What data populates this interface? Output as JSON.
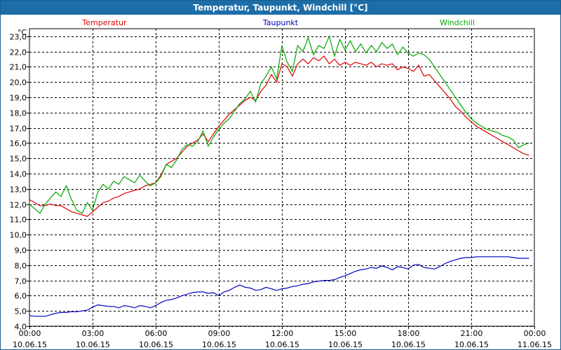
{
  "window": {
    "title": "Temperatur, Taupunkt, Windchill [°C]"
  },
  "colors": {
    "temperatur": "#e00000",
    "taupunkt": "#0000c0",
    "windchill": "#00a800",
    "title_bg": "#1d6ea8"
  },
  "chart_data": {
    "type": "line",
    "title": "Temperatur, Taupunkt, Windchill [°C]",
    "ylabel": "°C",
    "ylim": [
      4.0,
      23.5
    ],
    "yticks": [
      4.0,
      5.0,
      6.0,
      7.0,
      8.0,
      9.0,
      10.0,
      11.0,
      12.0,
      13.0,
      14.0,
      15.0,
      16.0,
      17.0,
      18.0,
      19.0,
      20.0,
      21.0,
      22.0,
      23.0
    ],
    "ytick_labels": [
      "4,0",
      "5,0",
      "6,0",
      "7,0",
      "8,0",
      "9,0",
      "10,0",
      "11,0",
      "12,0",
      "13,0",
      "14,0",
      "15,0",
      "16,0",
      "17,0",
      "18,0",
      "19,0",
      "20,0",
      "21,0",
      "22,0",
      "23,0"
    ],
    "xlim": [
      0,
      24
    ],
    "xticks": [
      0,
      3,
      6,
      9,
      12,
      15,
      18,
      21,
      24
    ],
    "xtick_labels": [
      {
        "time": "00:00",
        "date": "10.06.15"
      },
      {
        "time": "03:00",
        "date": "10.06.15"
      },
      {
        "time": "06:00",
        "date": "10.06.15"
      },
      {
        "time": "09:00",
        "date": "10.06.15"
      },
      {
        "time": "12:00",
        "date": "10.06.15"
      },
      {
        "time": "15:00",
        "date": "10.06.15"
      },
      {
        "time": "18:00",
        "date": "10.06.15"
      },
      {
        "time": "21:00",
        "date": "10.06.15"
      },
      {
        "time": "00:00",
        "date": "11.06.15"
      }
    ],
    "grid": true,
    "legend": [
      "Temperatur",
      "Taupunkt",
      "Windchill"
    ],
    "series": [
      {
        "name": "Temperatur",
        "color": "#e00000",
        "x": [
          0,
          0.25,
          0.5,
          0.75,
          1,
          1.25,
          1.5,
          1.75,
          2,
          2.25,
          2.5,
          2.75,
          3,
          3.25,
          3.5,
          3.75,
          4,
          4.25,
          4.5,
          4.75,
          5,
          5.25,
          5.5,
          5.75,
          6,
          6.25,
          6.5,
          6.75,
          7,
          7.25,
          7.5,
          7.75,
          8,
          8.25,
          8.5,
          8.75,
          9,
          9.25,
          9.5,
          9.75,
          10,
          10.25,
          10.5,
          10.75,
          11,
          11.25,
          11.5,
          11.75,
          12,
          12.25,
          12.5,
          12.75,
          13,
          13.25,
          13.5,
          13.75,
          14,
          14.25,
          14.5,
          14.75,
          15,
          15.25,
          15.5,
          15.75,
          16,
          16.25,
          16.5,
          16.75,
          17,
          17.25,
          17.5,
          17.75,
          18,
          18.25,
          18.5,
          18.75,
          19,
          19.25,
          19.5,
          19.75,
          20,
          20.25,
          20.5,
          20.75,
          21,
          21.25,
          21.5,
          21.75,
          22,
          22.25,
          22.5,
          22.75,
          23,
          23.25,
          23.5,
          23.75
        ],
        "values": [
          12.3,
          12.1,
          11.9,
          11.9,
          12.0,
          11.9,
          11.9,
          11.7,
          11.5,
          11.4,
          11.3,
          11.2,
          11.5,
          11.8,
          12.1,
          12.2,
          12.4,
          12.5,
          12.7,
          12.8,
          12.9,
          13.0,
          13.2,
          13.3,
          13.4,
          13.9,
          14.6,
          14.8,
          15.0,
          15.4,
          15.8,
          16.0,
          16.2,
          16.6,
          16.1,
          16.6,
          17.1,
          17.5,
          17.9,
          18.2,
          18.5,
          18.8,
          19.0,
          18.8,
          19.4,
          19.8,
          20.5,
          20.0,
          21.2,
          21.0,
          20.4,
          21.2,
          21.5,
          21.2,
          21.6,
          21.4,
          21.7,
          21.2,
          21.5,
          21.1,
          21.3,
          21.1,
          21.3,
          21.2,
          21.1,
          21.3,
          21.0,
          21.2,
          21.1,
          21.2,
          20.8,
          21.0,
          20.9,
          20.7,
          21.1,
          20.4,
          20.5,
          20.1,
          19.7,
          19.3,
          18.9,
          18.4,
          18.1,
          17.7,
          17.4,
          17.1,
          16.9,
          16.7,
          16.5,
          16.3,
          16.1,
          15.9,
          15.7,
          15.5,
          15.3,
          15.2
        ],
        "label_position": "top-left"
      },
      {
        "name": "Taupunkt",
        "color": "#0000c0",
        "x": [
          0,
          0.25,
          0.5,
          0.75,
          1,
          1.25,
          1.5,
          1.75,
          2,
          2.25,
          2.5,
          2.75,
          3,
          3.25,
          3.5,
          3.75,
          4,
          4.25,
          4.5,
          4.75,
          5,
          5.25,
          5.5,
          5.75,
          6,
          6.25,
          6.5,
          6.75,
          7,
          7.25,
          7.5,
          7.75,
          8,
          8.25,
          8.5,
          8.75,
          9,
          9.25,
          9.5,
          9.75,
          10,
          10.25,
          10.5,
          10.75,
          11,
          11.25,
          11.5,
          11.75,
          12,
          12.25,
          12.5,
          12.75,
          13,
          13.25,
          13.5,
          13.75,
          14,
          14.25,
          14.5,
          14.75,
          15,
          15.25,
          15.5,
          15.75,
          16,
          16.25,
          16.5,
          16.75,
          17,
          17.25,
          17.5,
          17.75,
          18,
          18.25,
          18.5,
          18.75,
          19,
          19.25,
          19.5,
          19.75,
          20,
          20.25,
          20.5,
          20.75,
          21,
          21.25,
          21.5,
          21.75,
          22,
          22.25,
          22.5,
          22.75,
          23,
          23.25,
          23.5,
          23.75
        ],
        "values": [
          4.7,
          4.65,
          4.65,
          4.65,
          4.75,
          4.85,
          4.9,
          4.9,
          4.95,
          4.95,
          5.0,
          5.05,
          5.25,
          5.4,
          5.35,
          5.3,
          5.3,
          5.2,
          5.35,
          5.3,
          5.2,
          5.35,
          5.3,
          5.2,
          5.35,
          5.55,
          5.7,
          5.75,
          5.85,
          6.0,
          6.1,
          6.2,
          6.25,
          6.25,
          6.15,
          6.2,
          6.0,
          6.25,
          6.35,
          6.55,
          6.7,
          6.55,
          6.5,
          6.35,
          6.4,
          6.55,
          6.45,
          6.35,
          6.45,
          6.5,
          6.6,
          6.65,
          6.75,
          6.8,
          6.9,
          6.95,
          7.0,
          7.0,
          7.05,
          7.2,
          7.3,
          7.45,
          7.6,
          7.7,
          7.75,
          7.85,
          7.8,
          7.95,
          7.85,
          7.7,
          7.9,
          7.85,
          7.75,
          8.0,
          8.05,
          7.85,
          7.8,
          7.75,
          7.9,
          8.1,
          8.25,
          8.35,
          8.45,
          8.5,
          8.5,
          8.55,
          8.55,
          8.55,
          8.55,
          8.55,
          8.55,
          8.55,
          8.5,
          8.45,
          8.45,
          8.45
        ],
        "label_position": "top-center"
      },
      {
        "name": "Windchill",
        "color": "#00a800",
        "x": [
          0,
          0.25,
          0.5,
          0.75,
          1,
          1.25,
          1.5,
          1.75,
          2,
          2.25,
          2.5,
          2.75,
          3,
          3.25,
          3.5,
          3.75,
          4,
          4.25,
          4.5,
          4.75,
          5,
          5.25,
          5.5,
          5.75,
          6,
          6.25,
          6.5,
          6.75,
          7,
          7.25,
          7.5,
          7.75,
          8,
          8.25,
          8.5,
          8.75,
          9,
          9.25,
          9.5,
          9.75,
          10,
          10.25,
          10.5,
          10.75,
          11,
          11.25,
          11.5,
          11.75,
          12,
          12.25,
          12.5,
          12.75,
          13,
          13.25,
          13.5,
          13.75,
          14,
          14.25,
          14.5,
          14.75,
          15,
          15.25,
          15.5,
          15.75,
          16,
          16.25,
          16.5,
          16.75,
          17,
          17.25,
          17.5,
          17.75,
          18,
          18.25,
          18.5,
          18.75,
          19,
          19.25,
          19.5,
          19.75,
          20,
          20.25,
          20.5,
          20.75,
          21,
          21.25,
          21.5,
          21.75,
          22,
          22.25,
          22.5,
          22.75,
          23,
          23.25,
          23.5,
          23.75
        ],
        "values": [
          12.0,
          11.7,
          11.4,
          12.0,
          12.4,
          12.8,
          12.5,
          13.2,
          12.3,
          11.6,
          11.4,
          12.1,
          11.6,
          12.8,
          13.3,
          13.0,
          13.5,
          13.3,
          13.8,
          13.6,
          13.4,
          13.9,
          13.5,
          13.2,
          13.4,
          13.8,
          14.6,
          14.4,
          14.9,
          15.6,
          15.9,
          15.8,
          16.1,
          16.8,
          15.8,
          16.4,
          16.9,
          17.3,
          17.6,
          18.1,
          18.6,
          18.9,
          19.4,
          18.7,
          19.9,
          20.4,
          21.0,
          20.2,
          22.4,
          21.3,
          20.7,
          22.4,
          22.0,
          22.9,
          21.8,
          22.4,
          22.2,
          23.0,
          21.7,
          22.8,
          22.1,
          22.7,
          22.0,
          22.5,
          21.9,
          22.4,
          22.0,
          22.6,
          22.2,
          22.5,
          21.8,
          22.3,
          21.9,
          21.7,
          21.9,
          21.8,
          21.5,
          21.0,
          20.5,
          20.0,
          19.5,
          19.0,
          18.5,
          18.0,
          17.6,
          17.3,
          17.1,
          16.9,
          16.8,
          16.7,
          16.5,
          16.4,
          16.2,
          15.7,
          15.9,
          16.0
        ],
        "label_position": "top-right"
      }
    ]
  }
}
